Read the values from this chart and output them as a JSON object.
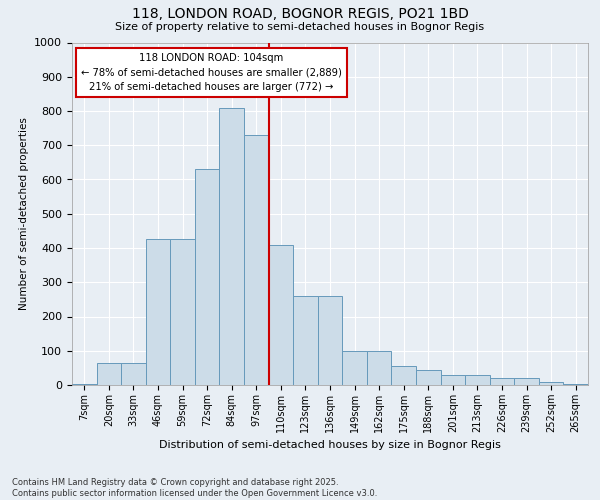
{
  "title": "118, LONDON ROAD, BOGNOR REGIS, PO21 1BD",
  "subtitle": "Size of property relative to semi-detached houses in Bognor Regis",
  "xlabel": "Distribution of semi-detached houses by size in Bognor Regis",
  "ylabel": "Number of semi-detached properties",
  "categories": [
    "7sqm",
    "20sqm",
    "33sqm",
    "46sqm",
    "59sqm",
    "72sqm",
    "84sqm",
    "97sqm",
    "110sqm",
    "123sqm",
    "136sqm",
    "149sqm",
    "162sqm",
    "175sqm",
    "188sqm",
    "201sqm",
    "213sqm",
    "226sqm",
    "239sqm",
    "252sqm",
    "265sqm"
  ],
  "values": [
    2,
    65,
    65,
    425,
    425,
    630,
    810,
    730,
    410,
    260,
    260,
    100,
    100,
    55,
    45,
    30,
    30,
    20,
    20,
    10,
    2
  ],
  "bar_color": "#ccdce8",
  "bar_edge_color": "#6699bb",
  "vline_color": "#cc0000",
  "annotation_text": "118 LONDON ROAD: 104sqm\n← 78% of semi-detached houses are smaller (2,889)\n21% of semi-detached houses are larger (772) →",
  "annotation_box_color": "#cc0000",
  "ylim": [
    0,
    1000
  ],
  "yticks": [
    0,
    100,
    200,
    300,
    400,
    500,
    600,
    700,
    800,
    900,
    1000
  ],
  "footer": "Contains HM Land Registry data © Crown copyright and database right 2025.\nContains public sector information licensed under the Open Government Licence v3.0.",
  "background_color": "#e8eef4",
  "grid_color": "#ffffff"
}
